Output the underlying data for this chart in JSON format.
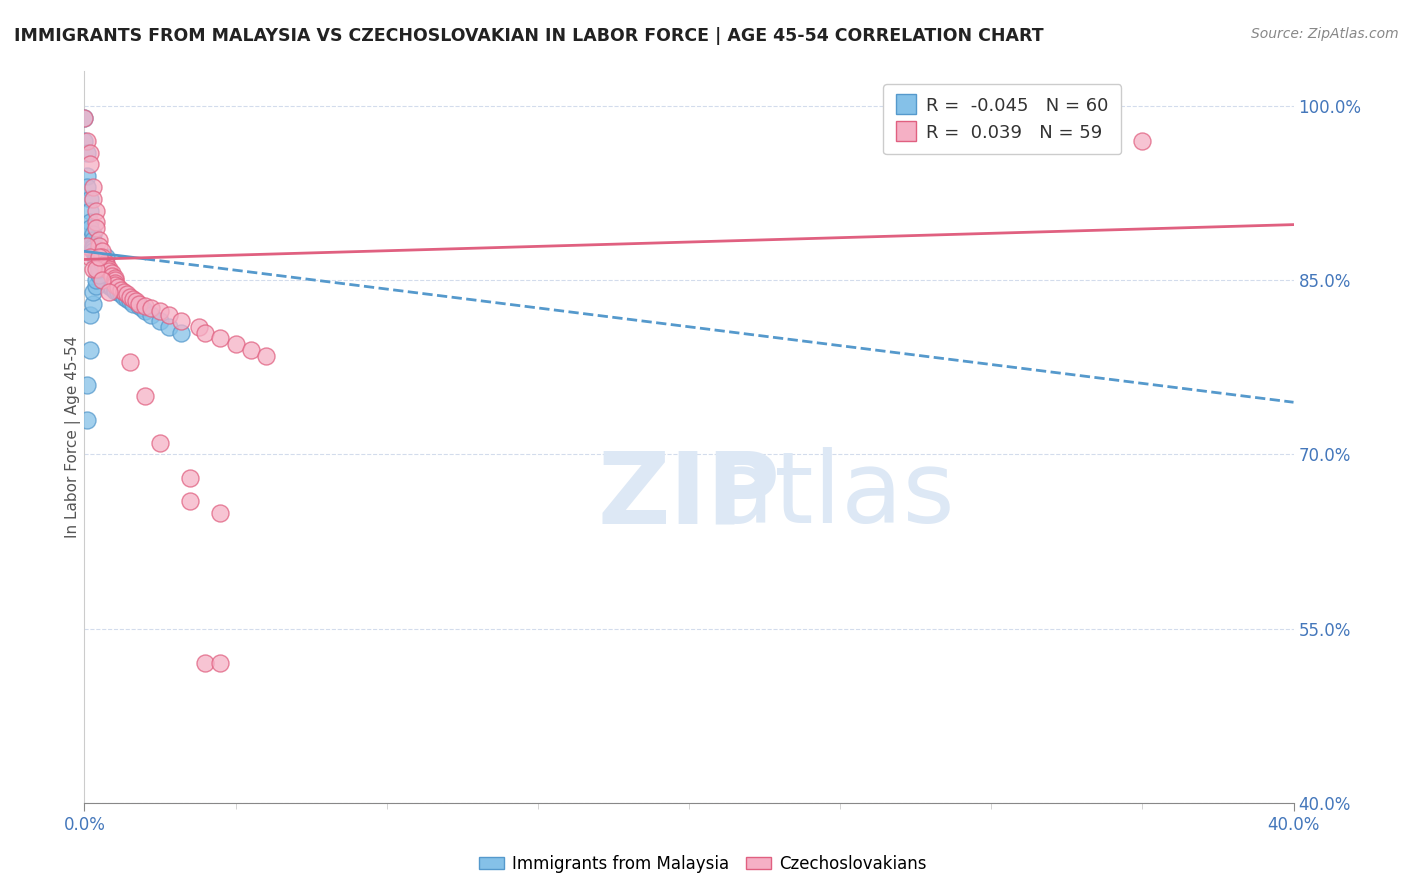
{
  "title": "IMMIGRANTS FROM MALAYSIA VS CZECHOSLOVAKIAN IN LABOR FORCE | AGE 45-54 CORRELATION CHART",
  "source": "Source: ZipAtlas.com",
  "ylabel": "In Labor Force | Age 45-54",
  "xlim": [
    0.0,
    0.4
  ],
  "ylim": [
    0.4,
    1.03
  ],
  "ytick_vals": [
    0.4,
    0.55,
    0.7,
    0.85,
    1.0
  ],
  "ytick_labels": [
    "40.0%",
    "55.0%",
    "70.0%",
    "85.0%",
    "100.0%"
  ],
  "xtick_vals": [
    0.0,
    0.4
  ],
  "xtick_labels": [
    "0.0%",
    "40.0%"
  ],
  "blue_R": -0.045,
  "blue_N": 60,
  "pink_R": 0.039,
  "pink_N": 59,
  "blue_color": "#85c1e8",
  "blue_edge": "#5599cc",
  "pink_color": "#f5b0c5",
  "pink_edge": "#e06080",
  "blue_line_color": "#5599cc",
  "pink_line_color": "#e06080",
  "legend_label_blue": "Immigrants from Malaysia",
  "legend_label_pink": "Czechoslovakians",
  "blue_trend_x0": 0.0,
  "blue_trend_x1": 0.4,
  "blue_trend_y0": 0.875,
  "blue_trend_y1": 0.745,
  "pink_trend_x0": 0.0,
  "pink_trend_x1": 0.4,
  "pink_trend_y0": 0.868,
  "pink_trend_y1": 0.898,
  "blue_scatter_x": [
    0.0,
    0.0,
    0.001,
    0.001,
    0.001,
    0.002,
    0.002,
    0.002,
    0.002,
    0.003,
    0.003,
    0.003,
    0.003,
    0.003,
    0.004,
    0.004,
    0.004,
    0.004,
    0.005,
    0.005,
    0.005,
    0.005,
    0.005,
    0.005,
    0.006,
    0.006,
    0.006,
    0.007,
    0.007,
    0.008,
    0.008,
    0.009,
    0.009,
    0.01,
    0.01,
    0.011,
    0.012,
    0.013,
    0.014,
    0.015,
    0.016,
    0.018,
    0.019,
    0.02,
    0.022,
    0.025,
    0.028,
    0.032,
    0.001,
    0.001,
    0.002,
    0.002,
    0.003,
    0.003,
    0.004,
    0.004,
    0.005,
    0.005,
    0.006,
    0.007
  ],
  "blue_scatter_y": [
    0.99,
    0.97,
    0.96,
    0.94,
    0.93,
    0.92,
    0.91,
    0.9,
    0.895,
    0.89,
    0.885,
    0.88,
    0.878,
    0.875,
    0.873,
    0.87,
    0.868,
    0.866,
    0.865,
    0.863,
    0.861,
    0.86,
    0.858,
    0.856,
    0.855,
    0.853,
    0.851,
    0.85,
    0.848,
    0.847,
    0.845,
    0.844,
    0.843,
    0.842,
    0.841,
    0.84,
    0.838,
    0.836,
    0.834,
    0.832,
    0.83,
    0.828,
    0.826,
    0.824,
    0.82,
    0.815,
    0.81,
    0.805,
    0.76,
    0.73,
    0.79,
    0.82,
    0.83,
    0.84,
    0.845,
    0.85,
    0.855,
    0.86,
    0.865,
    0.87
  ],
  "pink_scatter_x": [
    0.0,
    0.001,
    0.002,
    0.002,
    0.003,
    0.003,
    0.004,
    0.004,
    0.004,
    0.005,
    0.005,
    0.006,
    0.006,
    0.007,
    0.007,
    0.007,
    0.008,
    0.008,
    0.009,
    0.009,
    0.01,
    0.01,
    0.01,
    0.01,
    0.011,
    0.012,
    0.013,
    0.014,
    0.015,
    0.016,
    0.017,
    0.018,
    0.02,
    0.022,
    0.025,
    0.028,
    0.032,
    0.038,
    0.04,
    0.045,
    0.05,
    0.055,
    0.06,
    0.001,
    0.002,
    0.003,
    0.004,
    0.005,
    0.006,
    0.008,
    0.015,
    0.02,
    0.025,
    0.035,
    0.04,
    0.045,
    0.035,
    0.045,
    0.35
  ],
  "pink_scatter_y": [
    0.99,
    0.97,
    0.96,
    0.95,
    0.93,
    0.92,
    0.91,
    0.9,
    0.895,
    0.885,
    0.88,
    0.875,
    0.87,
    0.865,
    0.863,
    0.861,
    0.86,
    0.858,
    0.856,
    0.854,
    0.852,
    0.85,
    0.848,
    0.846,
    0.844,
    0.842,
    0.84,
    0.838,
    0.836,
    0.834,
    0.832,
    0.83,
    0.828,
    0.826,
    0.824,
    0.82,
    0.815,
    0.81,
    0.805,
    0.8,
    0.795,
    0.79,
    0.785,
    0.88,
    0.87,
    0.86,
    0.86,
    0.87,
    0.85,
    0.84,
    0.78,
    0.75,
    0.71,
    0.68,
    0.52,
    0.52,
    0.66,
    0.65,
    0.97
  ]
}
